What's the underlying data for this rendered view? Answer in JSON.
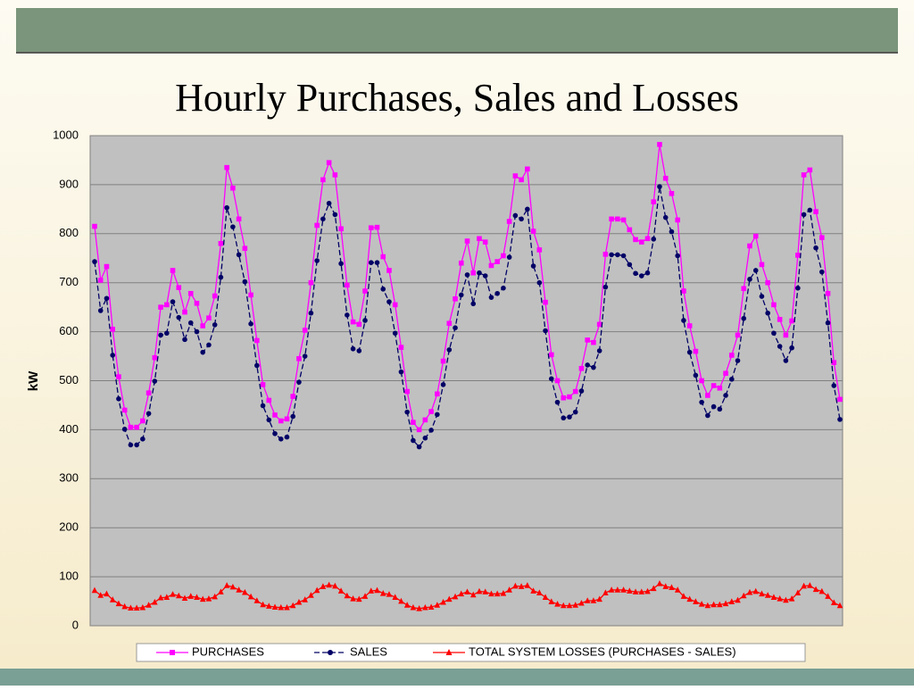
{
  "chart_data": {
    "type": "line",
    "title": "Hourly Purchases, Sales and Losses",
    "ylabel": "kW",
    "ylim": [
      0,
      1000
    ],
    "yticks": [
      0,
      100,
      200,
      300,
      400,
      500,
      600,
      700,
      800,
      900,
      1000
    ],
    "grid": true,
    "legend": "bottom",
    "series": [
      {
        "name": "PURCHASES",
        "color": "#ff00ff",
        "marker": "square",
        "values": [
          815,
          705,
          733,
          605,
          508,
          440,
          405,
          405,
          418,
          475,
          547,
          650,
          655,
          725,
          690,
          640,
          678,
          658,
          612,
          628,
          673,
          780,
          935,
          893,
          830,
          770,
          675,
          582,
          492,
          460,
          430,
          418,
          422,
          468,
          545,
          603,
          700,
          817,
          910,
          945,
          920,
          810,
          695,
          620,
          615,
          683,
          812,
          813,
          753,
          725,
          655,
          568,
          478,
          415,
          400,
          420,
          437,
          473,
          540,
          617,
          667,
          740,
          785,
          720,
          790,
          783,
          735,
          743,
          755,
          825,
          918,
          910,
          932,
          805,
          767,
          660,
          553,
          500,
          465,
          467,
          478,
          525,
          583,
          578,
          615,
          758,
          830,
          830,
          828,
          808,
          788,
          783,
          790,
          865,
          982,
          913,
          882,
          828,
          683,
          612,
          560,
          500,
          470,
          490,
          485,
          515,
          552,
          593,
          688,
          775,
          795,
          737,
          700,
          655,
          625,
          593,
          622,
          756,
          920,
          930,
          845,
          792,
          678,
          537,
          462
        ]
      },
      {
        "name": "SALES",
        "color": "#000066",
        "marker": "circle",
        "dashed": true,
        "values": [
          743,
          643,
          668,
          552,
          463,
          401,
          369,
          369,
          381,
          433,
          499,
          593,
          597,
          661,
          629,
          584,
          618,
          600,
          558,
          573,
          614,
          711,
          853,
          814,
          757,
          702,
          616,
          531,
          449,
          420,
          392,
          381,
          385,
          427,
          497,
          550,
          638,
          745,
          830,
          862,
          839,
          739,
          634,
          565,
          561,
          623,
          741,
          741,
          687,
          661,
          597,
          518,
          436,
          378,
          365,
          383,
          399,
          431,
          492,
          563,
          608,
          675,
          716,
          657,
          720,
          714,
          670,
          678,
          689,
          752,
          837,
          830,
          850,
          734,
          700,
          602,
          504,
          456,
          424,
          426,
          436,
          479,
          532,
          527,
          561,
          691,
          757,
          757,
          755,
          737,
          719,
          714,
          720,
          789,
          896,
          833,
          804,
          755,
          623,
          558,
          511,
          456,
          429,
          447,
          442,
          470,
          503,
          541,
          627,
          707,
          725,
          672,
          638,
          597,
          570,
          541,
          567,
          689,
          839,
          848,
          771,
          722,
          618,
          490,
          421
        ]
      },
      {
        "name": "TOTAL SYSTEM LOSSES (PURCHASES - SALES)",
        "color": "#ff0000",
        "marker": "triangle",
        "values": [
          72,
          62,
          65,
          53,
          45,
          39,
          36,
          36,
          37,
          42,
          48,
          57,
          58,
          64,
          61,
          56,
          60,
          58,
          54,
          55,
          59,
          69,
          82,
          79,
          73,
          68,
          59,
          51,
          43,
          40,
          38,
          37,
          37,
          41,
          48,
          53,
          62,
          72,
          80,
          83,
          81,
          71,
          61,
          55,
          54,
          60,
          71,
          72,
          66,
          64,
          58,
          50,
          42,
          37,
          35,
          37,
          38,
          42,
          48,
          54,
          59,
          65,
          69,
          63,
          70,
          69,
          65,
          65,
          66,
          73,
          81,
          80,
          82,
          71,
          67,
          58,
          49,
          44,
          41,
          41,
          42,
          46,
          51,
          51,
          54,
          67,
          73,
          73,
          73,
          71,
          69,
          69,
          70,
          76,
          86,
          80,
          78,
          73,
          60,
          54,
          49,
          44,
          41,
          43,
          43,
          45,
          49,
          52,
          61,
          68,
          70,
          65,
          62,
          58,
          55,
          52,
          55,
          67,
          81,
          82,
          74,
          70,
          60,
          47,
          41
        ]
      }
    ]
  }
}
